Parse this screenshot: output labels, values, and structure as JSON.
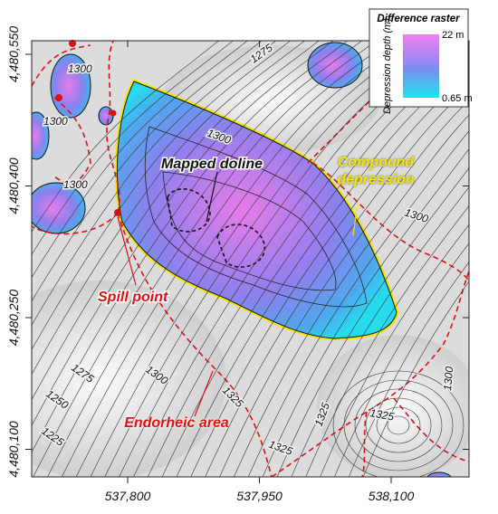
{
  "legend": {
    "title": "Difference raster",
    "axis_label": "Depression depth (m)",
    "max_label": "22 m",
    "min_label": "0.65 m"
  },
  "axes": {
    "x_ticks": [
      {
        "value": 537800,
        "label": "537,800"
      },
      {
        "value": 537950,
        "label": "537,950"
      },
      {
        "value": 538100,
        "label": "538,100"
      }
    ],
    "y_ticks": [
      {
        "value": 4480550,
        "label": "4,480,550"
      },
      {
        "value": 4480400,
        "label": "4,480,400"
      },
      {
        "value": 4480250,
        "label": "4,480,250"
      },
      {
        "value": 4480100,
        "label": "4,480,100"
      }
    ]
  },
  "annotations": {
    "mapped_doline": "Mapped doline",
    "compound_depression": "Compound depression",
    "spill_point": "Spill point",
    "endorheic_area": "Endorheic area"
  },
  "contour_labels": [
    "1300",
    "1300",
    "1300",
    "1300",
    "1300",
    "1275",
    "1300",
    "1275",
    "1250",
    "1225",
    "1325",
    "1325",
    "1325",
    "1325",
    "1300"
  ]
}
